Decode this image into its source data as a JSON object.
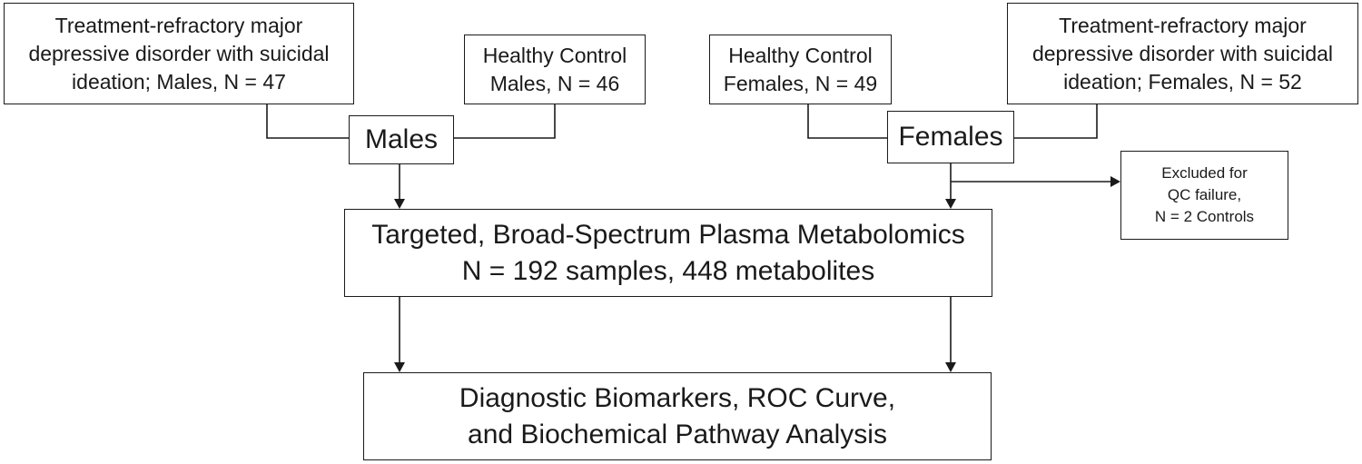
{
  "boxes": {
    "mdd_males": "Treatment-refractory major\ndepressive disorder with suicidal\nideation; Males, N = 47",
    "hc_males": "Healthy Control\nMales, N = 46",
    "hc_females": "Healthy Control\nFemales, N = 49",
    "mdd_females": "Treatment-refractory major\ndepressive disorder with suicidal\nideation; Females, N = 52",
    "males": "Males",
    "females": "Females",
    "excluded": "Excluded for\nQC failure,\nN = 2 Controls",
    "metabolomics": "Targeted, Broad-Spectrum Plasma Metabolomics\nN = 192 samples, 448 metabolites",
    "outcomes": "Diagnostic Biomarkers, ROC Curve,\nand Biochemical Pathway Analysis"
  }
}
